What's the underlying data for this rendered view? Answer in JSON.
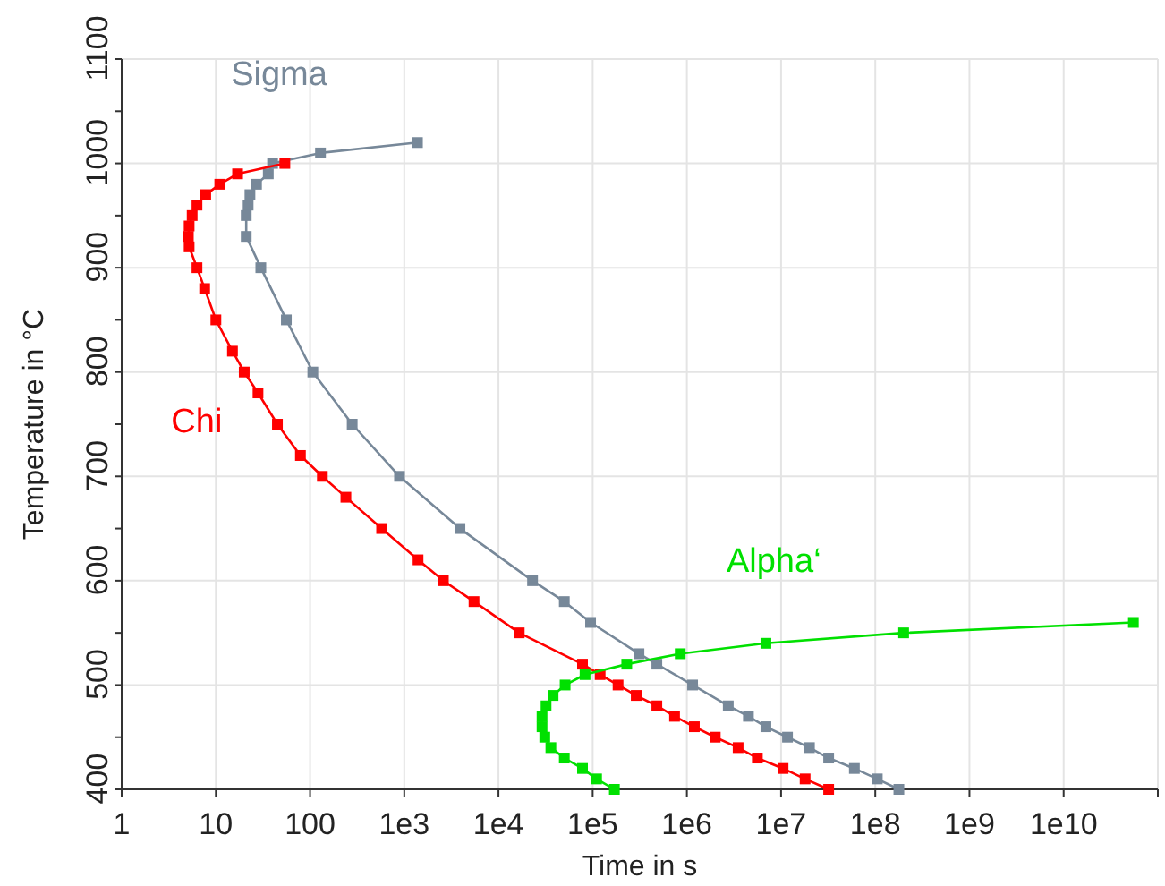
{
  "chart_data": {
    "type": "line",
    "xlabel": "Time in s",
    "ylabel": "Temperature in °C",
    "log": "x",
    "grid": true,
    "marker": "square",
    "line_style": "solid",
    "xlim": [
      1,
      100000000000
    ],
    "ylim": [
      400,
      1100
    ],
    "xticks": [
      1,
      10,
      100,
      {
        "value": 1000,
        "label": "1e3"
      },
      {
        "value": 10000,
        "label": "1e4"
      },
      {
        "value": 100000,
        "label": "1e5"
      },
      {
        "value": 1000000,
        "label": "1e6"
      },
      {
        "value": 10000000,
        "label": "1e7"
      },
      {
        "value": 100000000,
        "label": "1e8"
      },
      {
        "value": 1000000000,
        "label": "1e9"
      },
      {
        "value": 10000000000,
        "label": "1e10"
      },
      {
        "value": 100000000000,
        "label": null
      }
    ],
    "yticks": [
      400,
      {
        "value": 450,
        "label": null
      },
      500,
      {
        "value": 550,
        "label": null
      },
      600,
      {
        "value": 650,
        "label": null
      },
      700,
      {
        "value": 750,
        "label": null
      },
      800,
      {
        "value": 850,
        "label": null
      },
      900,
      {
        "value": 950,
        "label": null
      },
      1000,
      {
        "value": 1050,
        "label": null
      },
      1100
    ],
    "series": [
      {
        "name": "Sigma",
        "color": "#778899",
        "x": [
          1380,
          129,
          40,
          36,
          27,
          23,
          22,
          21,
          21,
          30,
          56,
          107,
          280,
          890,
          3900,
          23000,
          50000,
          95000,
          310000,
          480000,
          1150000,
          2750000,
          4500000,
          6900000,
          11700000,
          20000000,
          32000000,
          60000000,
          105000000,
          178000000
        ],
        "values": [
          1020,
          1010,
          1000,
          990,
          980,
          970,
          960,
          950,
          930,
          900,
          850,
          800,
          750,
          700,
          650,
          600,
          580,
          560,
          530,
          520,
          500,
          480,
          470,
          460,
          450,
          440,
          430,
          420,
          410,
          400
        ]
      },
      {
        "name": "Chi",
        "color": "#ff0000",
        "x": [
          54,
          17,
          11,
          7.8,
          6.3,
          5.6,
          5.2,
          5.1,
          5.2,
          6.3,
          7.6,
          10,
          15,
          20,
          28,
          45,
          79,
          135,
          240,
          575,
          1400,
          2600,
          5500,
          16600,
          78000,
          120000,
          186000,
          290000,
          480000,
          740000,
          1200000,
          2000000,
          3500000,
          5600000,
          10500000,
          18000000,
          32000000
        ],
        "values": [
          1000,
          990,
          980,
          970,
          960,
          950,
          940,
          930,
          920,
          900,
          880,
          850,
          820,
          800,
          780,
          750,
          720,
          700,
          680,
          650,
          620,
          600,
          580,
          550,
          520,
          510,
          500,
          490,
          480,
          470,
          460,
          450,
          440,
          430,
          420,
          410,
          400
        ]
      },
      {
        "name": "Alpha‘",
        "color": "#00e000",
        "x": [
          170000,
          110000,
          78000,
          50000,
          36000,
          31000,
          29000,
          29000,
          32000,
          38000,
          51000,
          83000,
          230000,
          850000,
          6900000,
          200000000,
          55000000000
        ],
        "values": [
          400,
          410,
          420,
          430,
          440,
          450,
          460,
          470,
          480,
          490,
          500,
          510,
          520,
          530,
          540,
          550,
          560
        ]
      }
    ]
  }
}
